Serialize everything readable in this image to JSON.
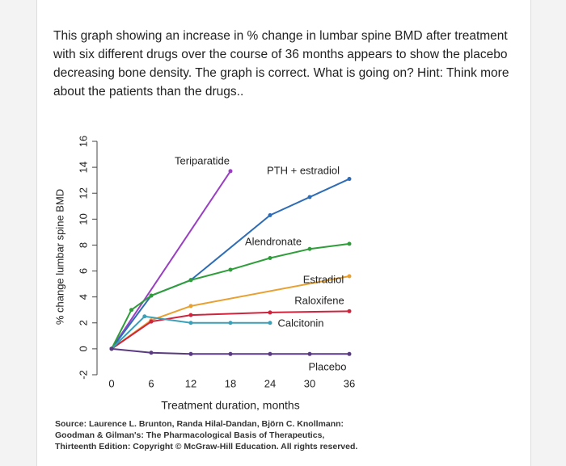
{
  "question": "This graph showing an increase in % change in lumbar spine BMD after treatment with six different drugs over the course of 36 months appears to show the placebo decreasing bone density. The graph is correct. What is going on? Hint: Think more about the patients than the drugs..",
  "chart_data": {
    "type": "line",
    "y_label": "% change lumbar spine BMD",
    "x_label": "Treatment duration, months",
    "xlim": [
      0,
      36
    ],
    "xticks": [
      0,
      6,
      12,
      18,
      24,
      30,
      36
    ],
    "ylim": [
      -2,
      16
    ],
    "yticks": [
      16,
      14,
      12,
      10,
      8,
      6,
      4,
      2,
      0,
      -2
    ],
    "series": [
      {
        "name": "Teriparatide",
        "color": "#9a3fc2",
        "x": [
          0,
          18
        ],
        "values": [
          0,
          13.7
        ]
      },
      {
        "name": "PTH + estradiol",
        "color": "#2e6db5",
        "x": [
          0,
          6,
          12,
          24,
          30,
          36
        ],
        "values": [
          0,
          4.1,
          5.3,
          10.3,
          11.7,
          13.1
        ]
      },
      {
        "name": "Alendronate",
        "color": "#2f9e3a",
        "x": [
          0,
          3,
          6,
          12,
          18,
          24,
          30,
          36
        ],
        "values": [
          0,
          3,
          4.1,
          5.3,
          6.1,
          7,
          7.7,
          8.1
        ]
      },
      {
        "name": "Estradiol",
        "color": "#e8a030",
        "x": [
          0,
          6,
          12,
          36
        ],
        "values": [
          0,
          2.2,
          3.3,
          5.6
        ]
      },
      {
        "name": "Raloxifene",
        "color": "#d0243c",
        "x": [
          0,
          6,
          12,
          24,
          36
        ],
        "values": [
          0,
          2.1,
          2.6,
          2.8,
          2.9
        ]
      },
      {
        "name": "Calcitonin",
        "color": "#3aa0b8",
        "x": [
          0,
          5,
          12,
          18,
          24
        ],
        "values": [
          0,
          2.5,
          2,
          2,
          2
        ]
      },
      {
        "name": "Placebo",
        "color": "#5a3a80",
        "x": [
          0,
          6,
          12,
          18,
          24,
          30,
          36
        ],
        "values": [
          0,
          -0.3,
          -0.4,
          -0.4,
          -0.4,
          -0.4,
          -0.4
        ]
      }
    ]
  },
  "source": [
    "Source: Laurence L. Brunton, Randa Hilal-Dandan, Björn C. Knollmann:",
    "Goodman & Gilman's: The Pharmacological Basis of Therapeutics,",
    "Thirteenth Edition: Copyright © McGraw-Hill Education. All rights reserved."
  ]
}
